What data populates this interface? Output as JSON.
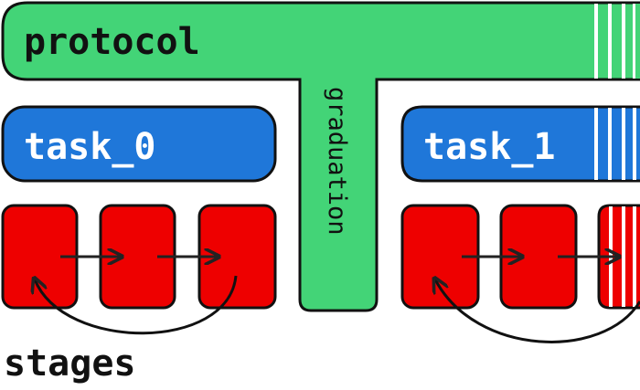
{
  "protocol": {
    "label": "protocol"
  },
  "graduation": {
    "label": "graduation"
  },
  "tasks": [
    {
      "label": "task_0"
    },
    {
      "label": "task_1"
    }
  ],
  "stages_label": "stages",
  "colors": {
    "protocol": "#43d477",
    "task": "#1f77d9",
    "stage": "#ee0000",
    "outline": "#111111",
    "stripe": "#ffffff"
  }
}
